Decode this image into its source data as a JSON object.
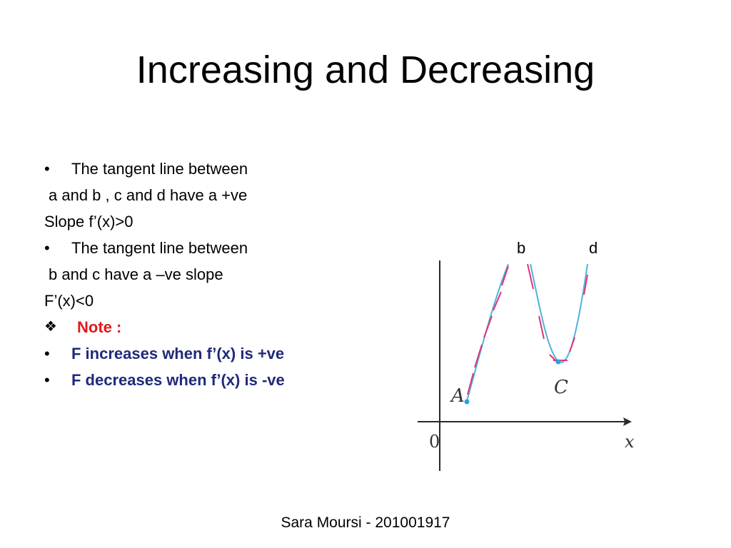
{
  "slide": {
    "title": "Increasing and Decreasing",
    "lines": [
      {
        "bullet": "•",
        "text": "The tangent line between"
      },
      {
        "bullet": "",
        "text": "a and b , c and d  have a +ve"
      },
      {
        "bullet": "",
        "text": "Slope f’(x)>0"
      },
      {
        "bullet": "•",
        "text": "The tangent line between"
      },
      {
        "bullet": "",
        "text": "b and c have a –ve slope"
      },
      {
        "bullet": "",
        "text": "F’(x)<0"
      },
      {
        "bullet": "❖",
        "text": "Note :"
      },
      {
        "bullet": "•",
        "text": "F increases when f’(x) is +ve"
      },
      {
        "bullet": "•",
        "text": "F decreases when f’(x) is -ve"
      }
    ],
    "graph_labels": {
      "b": "b",
      "d": "d"
    },
    "figure": {
      "point_a": "A",
      "point_c": "C",
      "origin": "0",
      "x_axis": "x",
      "colors": {
        "tangent": "#e0337a",
        "curve": "#4fb3d9",
        "axis": "#2a2a2a"
      }
    },
    "footer": "Sara Moursi - 201001917"
  }
}
